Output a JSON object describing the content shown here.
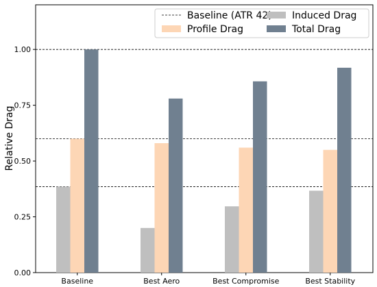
{
  "chart_data": {
    "type": "bar",
    "categories": [
      "Baseline",
      "Best Aero",
      "Best Compromise",
      "Best Stability"
    ],
    "series": [
      {
        "name": "Induced Drag",
        "values": [
          0.385,
          0.2,
          0.297,
          0.367
        ],
        "color": "#bfbfbf"
      },
      {
        "name": "Profile Drag",
        "values": [
          0.6,
          0.58,
          0.56,
          0.55
        ],
        "color": "#fdd6b5"
      },
      {
        "name": "Total Drag",
        "values": [
          1.0,
          0.78,
          0.857,
          0.918
        ],
        "color": "#708090"
      }
    ],
    "reference_lines": {
      "name": "Baseline (ATR 42)",
      "values": [
        1.0,
        0.6,
        0.385
      ],
      "style": "dashed",
      "color": "#000000"
    },
    "title": "",
    "xlabel": "",
    "ylabel": "Relative Drag",
    "ylim": [
      0,
      1.2
    ],
    "yticks": [
      "0.00",
      "0.25",
      "0.50",
      "0.75",
      "1.00"
    ],
    "ytick_values": [
      0,
      0.25,
      0.5,
      0.75,
      1.0
    ],
    "grid": false,
    "legend_position": "top-right",
    "legend_order": [
      "Baseline (ATR 42)",
      "Profile Drag",
      "Induced Drag",
      "Total Drag"
    ]
  }
}
